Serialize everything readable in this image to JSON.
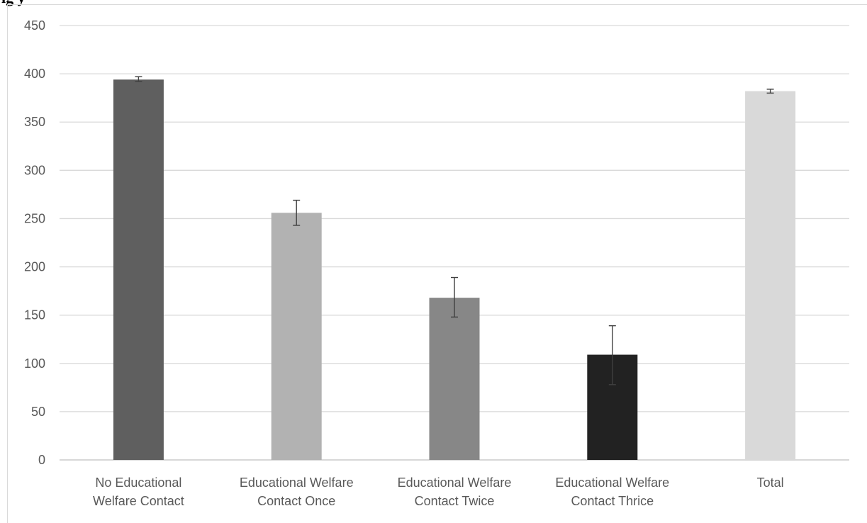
{
  "caption_fragment": "ig                                              y",
  "chart_data": {
    "type": "bar",
    "title": "",
    "xlabel": "",
    "ylabel": "",
    "ylim": [
      0,
      450
    ],
    "y_ticks": [
      0,
      50,
      100,
      150,
      200,
      250,
      300,
      350,
      400,
      450
    ],
    "grid": true,
    "legend": "none",
    "categories": [
      [
        "No Educational",
        "Welfare Contact"
      ],
      [
        "Educational Welfare",
        "Contact Once"
      ],
      [
        "Educational Welfare",
        "Contact Twice"
      ],
      [
        "Educational Welfare",
        "Contact Thrice"
      ],
      [
        "Total"
      ]
    ],
    "values": [
      394,
      256,
      168,
      109,
      382
    ],
    "error_low": [
      392,
      243,
      148,
      78,
      380
    ],
    "error_high": [
      397,
      269,
      189,
      139,
      384
    ],
    "colors": [
      "#5f5f5f",
      "#b2b2b2",
      "#878787",
      "#222222",
      "#d9d9d9"
    ]
  }
}
